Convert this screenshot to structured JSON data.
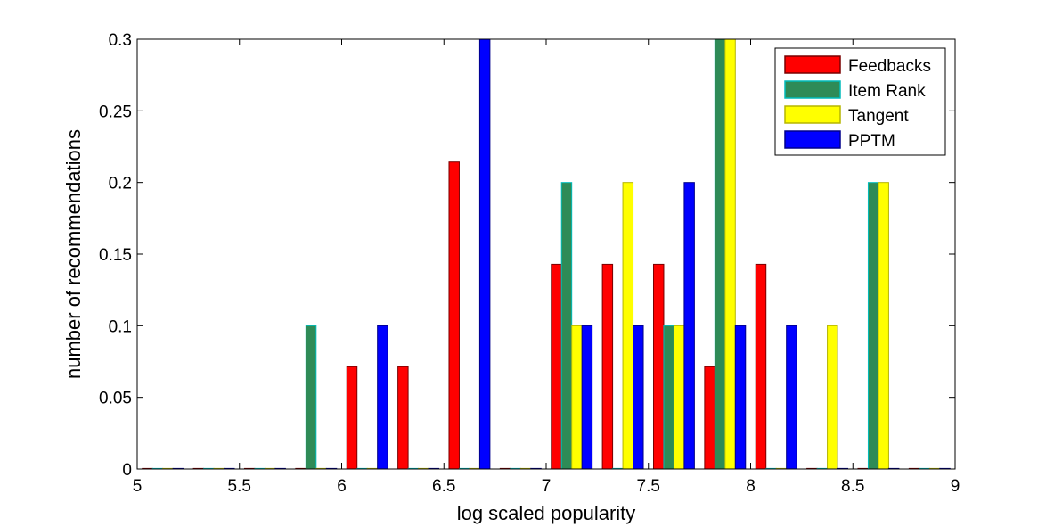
{
  "chart_data": {
    "type": "bar",
    "title": "",
    "xlabel": "log scaled popularity",
    "ylabel": "number of recommendations",
    "xlim": [
      5,
      9
    ],
    "ylim": [
      0,
      0.3
    ],
    "xticks": [
      "5",
      "5.5",
      "6",
      "6.5",
      "7",
      "7.5",
      "8",
      "8.5",
      "9"
    ],
    "yticks": [
      "0",
      "0.05",
      "0.1",
      "0.15",
      "0.2",
      "0.25",
      "0.3"
    ],
    "grid": false,
    "legend_position": "top-right",
    "bin_centers": [
      5.125,
      5.375,
      5.625,
      5.875,
      6.125,
      6.375,
      6.625,
      6.875,
      7.125,
      7.375,
      7.625,
      7.875,
      8.125,
      8.375,
      8.625,
      8.875
    ],
    "series": [
      {
        "name": "Feedbacks",
        "color": "#ff0000",
        "edge": "#7a0000",
        "values": [
          0,
          0,
          0,
          0,
          0.0714,
          0.0714,
          0.2143,
          0,
          0.1429,
          0.1429,
          0.1429,
          0.0714,
          0.1429,
          0,
          0,
          0
        ]
      },
      {
        "name": "Item Rank",
        "color": "#2e8b57",
        "edge": "#00bcbc",
        "values": [
          0,
          0,
          0,
          0.1,
          0,
          0,
          0,
          0,
          0.2,
          0,
          0.1,
          0.3,
          0,
          0,
          0.2,
          0
        ]
      },
      {
        "name": "Tangent",
        "color": "#ffff00",
        "edge": "#b5b500",
        "values": [
          0,
          0,
          0,
          0,
          0,
          0,
          0,
          0,
          0.1,
          0.2,
          0.1,
          0.3,
          0,
          0.1,
          0.2,
          0
        ]
      },
      {
        "name": "PPTM",
        "color": "#0000ff",
        "edge": "#00008b",
        "values": [
          0,
          0,
          0,
          0,
          0.1,
          0,
          0.3,
          0,
          0.1,
          0.1,
          0.2,
          0.1,
          0.1,
          0,
          0,
          0
        ]
      }
    ]
  }
}
